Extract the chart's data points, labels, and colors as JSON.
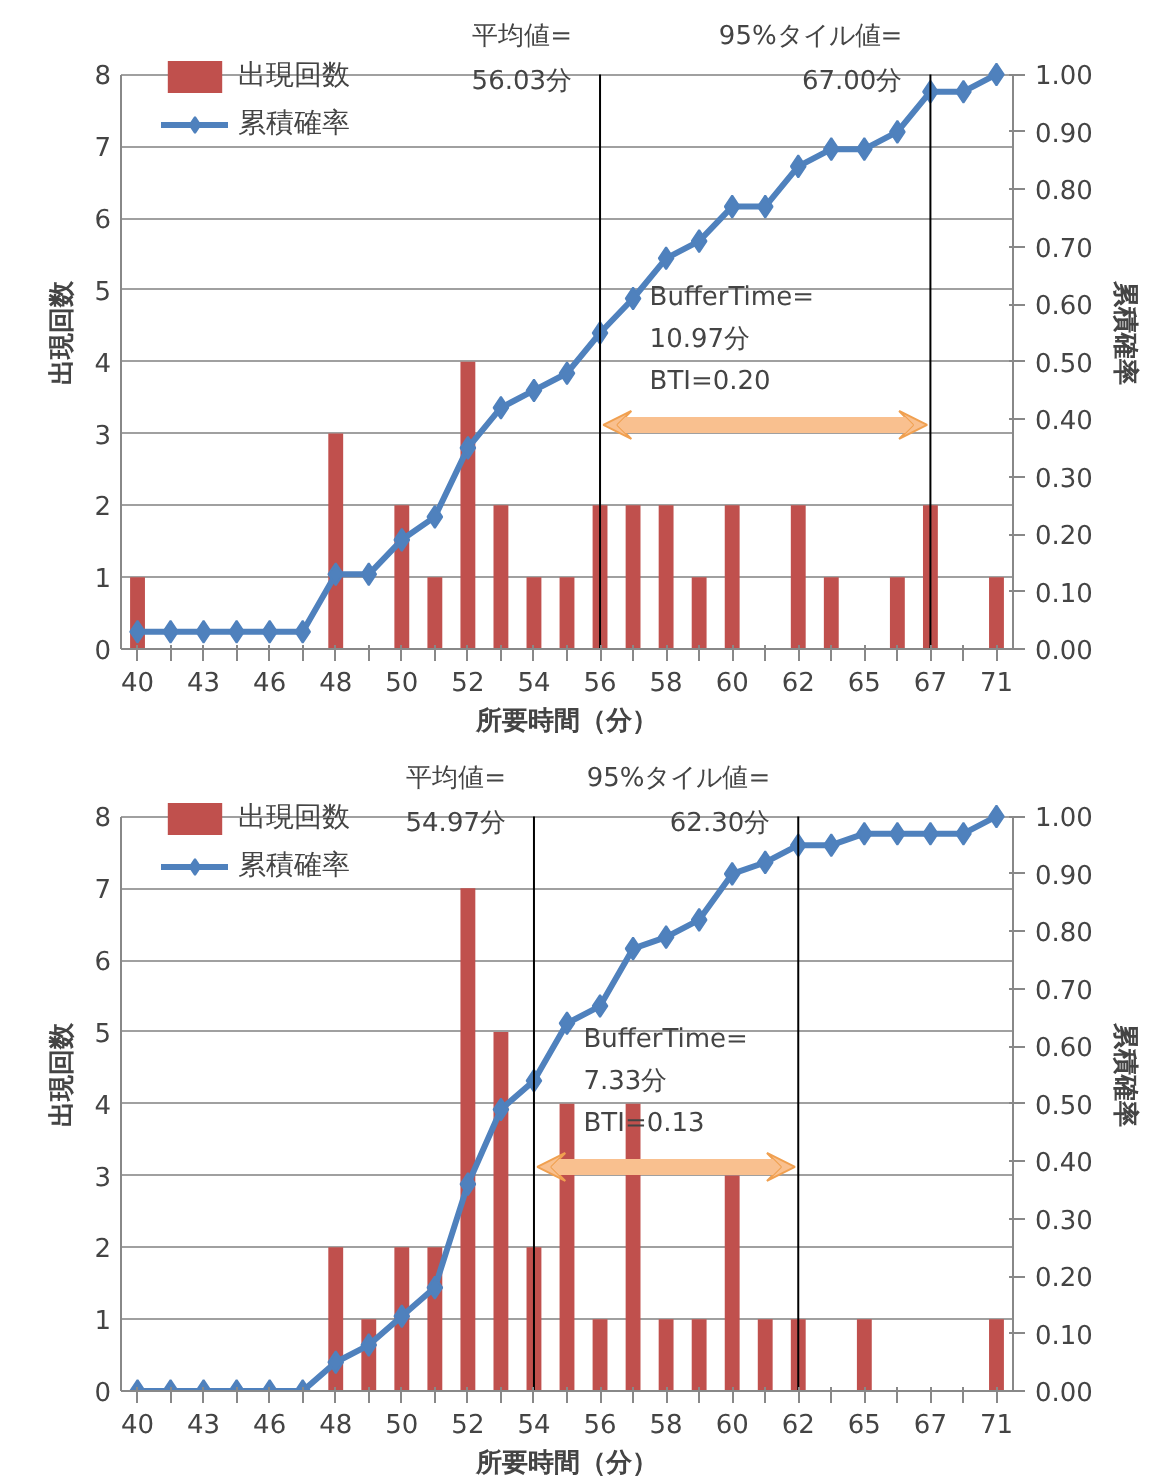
{
  "chart_data": [
    {
      "type": "bar",
      "xlabel": "所要時間（分）",
      "ylabel": "出現回数",
      "y2label": "累積確率",
      "categories": [
        "40",
        null,
        "43",
        null,
        "46",
        null,
        "48",
        null,
        "50",
        null,
        "52",
        null,
        "54",
        null,
        "56",
        null,
        "58",
        null,
        "60",
        null,
        "62",
        null,
        "65",
        null,
        "67",
        null,
        "71"
      ],
      "series": [
        {
          "name": "出現回数",
          "color": "#c0504d",
          "values": [
            1,
            0,
            0,
            0,
            0,
            0,
            3,
            0,
            2,
            1,
            4,
            2,
            1,
            1,
            2,
            2,
            2,
            1,
            2,
            0,
            2,
            1,
            0,
            1,
            2,
            0,
            1
          ]
        },
        {
          "name": "累積確率",
          "type": "line",
          "axis": "y2",
          "color": "#4f81bd",
          "values": [
            0.03,
            0.03,
            0.03,
            0.03,
            0.03,
            0.03,
            0.13,
            0.13,
            0.19,
            0.23,
            0.35,
            0.42,
            0.45,
            0.48,
            0.55,
            0.61,
            0.68,
            0.71,
            0.77,
            0.77,
            0.84,
            0.87,
            0.87,
            0.9,
            0.97,
            0.97,
            1.0
          ]
        }
      ],
      "ylim": [
        0,
        8
      ],
      "yticks": [
        0,
        1,
        2,
        3,
        4,
        5,
        6,
        7,
        8
      ],
      "y2lim": [
        0,
        1
      ],
      "y2ticks": [
        {
          "value": 0,
          "label": "0.00"
        },
        {
          "value": 0.1,
          "label": "0.10"
        },
        {
          "value": 0.2,
          "label": "0.20"
        },
        {
          "value": 0.3,
          "label": "0.30"
        },
        {
          "value": 0.4,
          "label": "0.40"
        },
        {
          "value": 0.5,
          "label": "0.50"
        },
        {
          "value": 0.6,
          "label": "0.60"
        },
        {
          "value": 0.7,
          "label": "0.70"
        },
        {
          "value": 0.8,
          "label": "0.80"
        },
        {
          "value": 0.9,
          "label": "0.90"
        },
        {
          "value": 1,
          "label": "1.00"
        }
      ],
      "ref_lines": [
        {
          "axis": "x",
          "value": "56",
          "label": "平均値=\n56.03分",
          "color": "#000000"
        },
        {
          "axis": "x",
          "value": "67",
          "label": "95%タイル値=\n67.00分",
          "color": "#000000"
        }
      ],
      "annotations": [
        "BufferTime=\n10.97分\nBTI=0.20"
      ],
      "grid": "y",
      "legend": "top left",
      "marker": "diamond",
      "line_style": "solid"
    },
    {
      "type": "bar",
      "xlabel": "所要時間（分）",
      "ylabel": "出現回数",
      "y2label": "累積確率",
      "categories": [
        "40",
        null,
        "43",
        null,
        "46",
        null,
        "48",
        null,
        "50",
        null,
        "52",
        null,
        "54",
        null,
        "56",
        null,
        "58",
        null,
        "60",
        null,
        "62",
        null,
        "65",
        null,
        "67",
        null,
        "71"
      ],
      "series": [
        {
          "name": "出現回数",
          "color": "#c0504d",
          "values": [
            0,
            0,
            0,
            0,
            0,
            0,
            2,
            1,
            2,
            2,
            7,
            5,
            2,
            4,
            1,
            4,
            1,
            1,
            3,
            1,
            1,
            0,
            1,
            0,
            0,
            0,
            1
          ]
        },
        {
          "name": "累積確率",
          "type": "line",
          "axis": "y2",
          "color": "#4f81bd",
          "values": [
            0,
            0,
            0,
            0,
            0,
            0,
            0.05,
            0.08,
            0.13,
            0.18,
            0.36,
            0.49,
            0.54,
            0.64,
            0.67,
            0.77,
            0.79,
            0.82,
            0.9,
            0.92,
            0.95,
            0.95,
            0.97,
            0.97,
            0.97,
            0.97,
            1.0
          ]
        }
      ],
      "ylim": [
        0,
        8
      ],
      "yticks": [
        0,
        1,
        2,
        3,
        4,
        5,
        6,
        7,
        8
      ],
      "y2lim": [
        0,
        1
      ],
      "y2ticks": [
        {
          "value": 0,
          "label": "0.00"
        },
        {
          "value": 0.1,
          "label": "0.10"
        },
        {
          "value": 0.2,
          "label": "0.20"
        },
        {
          "value": 0.3,
          "label": "0.30"
        },
        {
          "value": 0.4,
          "label": "0.40"
        },
        {
          "value": 0.5,
          "label": "0.50"
        },
        {
          "value": 0.6,
          "label": "0.60"
        },
        {
          "value": 0.7,
          "label": "0.70"
        },
        {
          "value": 0.8,
          "label": "0.80"
        },
        {
          "value": 0.9,
          "label": "0.90"
        },
        {
          "value": 1,
          "label": "1.00"
        }
      ],
      "ref_lines": [
        {
          "axis": "x",
          "value": "54",
          "label": "平均値=\n54.97分",
          "color": "#000000"
        },
        {
          "axis": "x",
          "value": "62",
          "label": "95%タイル値=\n62.30分",
          "color": "#000000"
        }
      ],
      "annotations": [
        "BufferTime=\n7.33分\nBTI=0.13"
      ],
      "grid": "y",
      "legend": "top left",
      "marker": "diamond",
      "line_style": "solid"
    }
  ]
}
